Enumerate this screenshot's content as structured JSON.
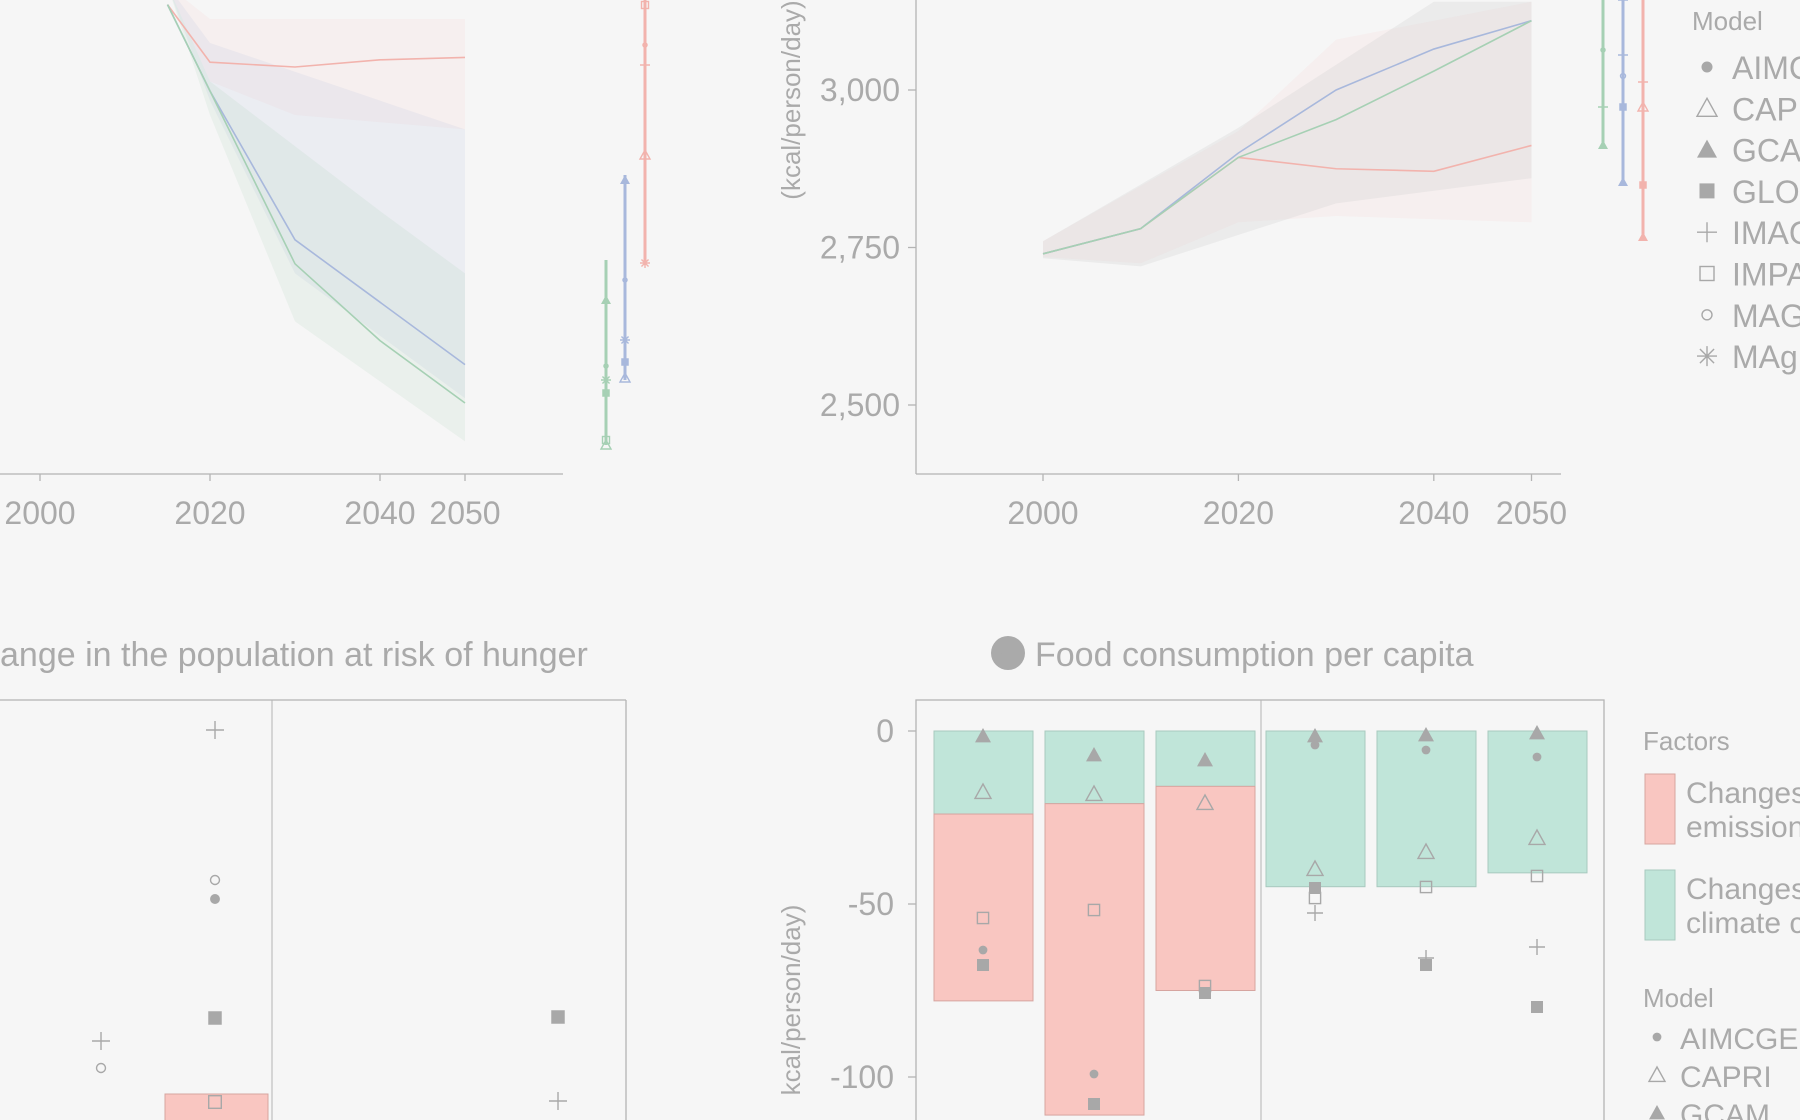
{
  "colors": {
    "background": "#f6f6f6",
    "axis": "#b4b4b4",
    "text": "#aaaaaa",
    "marker": "#a8a8a8",
    "red_line": "#f2b3ad",
    "blue_line": "#a8b8dc",
    "green_line": "#a6d0b4",
    "bar_emission": "#f9c6c1",
    "bar_climate": "#c0e5d9"
  },
  "model_names": [
    "AIMC",
    "CAPI",
    "GCA",
    "GLO",
    "IMAG",
    "IMPA",
    "MAG",
    "MAgI"
  ],
  "chart_data": [
    {
      "panel": "a",
      "type": "line",
      "x_ticks": [
        "2000",
        "2020",
        "2040",
        "2050"
      ],
      "series": [
        {
          "x": [
            2015,
            2020,
            2030,
            2040,
            2050
          ],
          "y": [
            0.98,
            0.86,
            0.85,
            0.865,
            0.87
          ],
          "color": "red"
        },
        {
          "x": [
            2015,
            2020,
            2030,
            2040,
            2050
          ],
          "y": [
            0.98,
            0.8,
            0.49,
            0.36,
            0.23
          ],
          "color": "blue"
        },
        {
          "x": [
            2015,
            2020,
            2030,
            2040,
            2050
          ],
          "y": [
            0.98,
            0.8,
            0.44,
            0.28,
            0.15
          ],
          "color": "green"
        }
      ],
      "ylim": [
        0,
        1
      ]
    },
    {
      "panel": "b",
      "type": "line",
      "ylabel": "(kcal/person/day)",
      "y_ticks": [
        "2,500",
        "2,750",
        "3,000"
      ],
      "x_ticks": [
        "2000",
        "2020",
        "2040",
        "2050"
      ],
      "series": [
        {
          "x": [
            2000,
            2010,
            2020,
            2030,
            2040,
            2050
          ],
          "y": [
            2740,
            2780,
            2893,
            2875,
            2871,
            2912
          ],
          "color": "red"
        },
        {
          "x": [
            2000,
            2010,
            2020,
            2030,
            2040,
            2050
          ],
          "y": [
            2740,
            2780,
            2900,
            3000,
            3065,
            3110
          ],
          "color": "blue"
        },
        {
          "x": [
            2000,
            2010,
            2020,
            2030,
            2040,
            2050
          ],
          "y": [
            2740,
            2780,
            2893,
            2953,
            3030,
            3110
          ],
          "color": "green"
        }
      ],
      "ylim": [
        2390,
        3140
      ],
      "legend_title": "Model",
      "legend_entries": [
        "AIMC",
        "CAPI",
        "GCA",
        "GLO",
        "IMAG",
        "IMPA",
        "MAG",
        "MAgI"
      ]
    },
    {
      "panel": "c",
      "type": "scatter",
      "title": "ange in the population at risk of hunger",
      "ylim": [
        0,
        1
      ]
    },
    {
      "panel": "d",
      "type": "bar",
      "title": "Food consumption per capita",
      "title_badge": "d",
      "ylabel": "kcal/person/day)",
      "y_ticks": [
        "0",
        "-50",
        "-100"
      ],
      "ylim": [
        -113,
        8
      ],
      "bars": [
        {
          "climate": -24,
          "emission": -78
        },
        {
          "climate": -21,
          "emission": -111
        },
        {
          "climate": -16,
          "emission": -75
        },
        {
          "climate": -45,
          "emission": -45
        },
        {
          "climate": -45,
          "emission": -45
        },
        {
          "climate": -41,
          "emission": -41
        }
      ],
      "legend_factors_title": "Factors",
      "legend_factors": [
        {
          "text": "Changes",
          "text2": "emission",
          "color": "emission"
        },
        {
          "text": "Changes",
          "text2": "climate c",
          "color": "climate"
        }
      ],
      "legend_model_title": "Model",
      "legend_models": [
        "AIMCGE",
        "CAPRI",
        "GCAM"
      ]
    }
  ]
}
